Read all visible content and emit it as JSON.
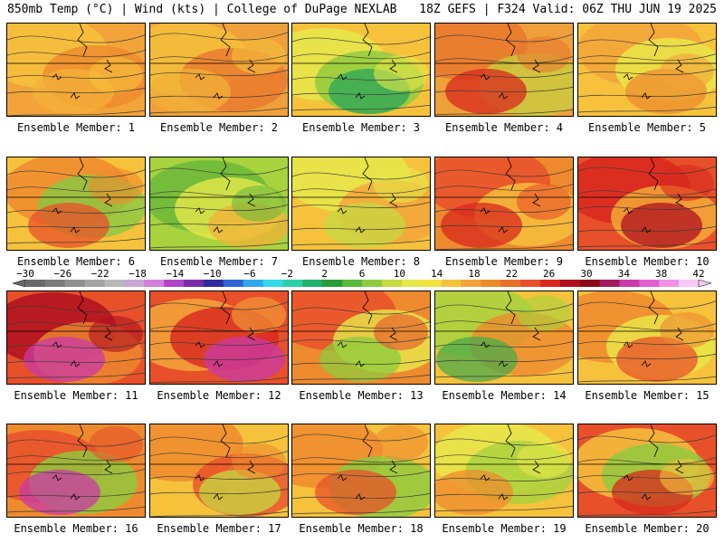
{
  "header": {
    "left": "850mb Temp (°C) | Wind (kts) | College of DuPage NEXLAB",
    "right": "18Z GEFS | F324 Valid: 06Z THU JUN 19 2025"
  },
  "members": [
    {
      "label": "Ensemble Member: 1",
      "palette": [
        "#f2a43a",
        "#f6c23c",
        "#ee8a2e",
        "#f4b038"
      ]
    },
    {
      "label": "Ensemble Member: 2",
      "palette": [
        "#f0a03a",
        "#f5c03c",
        "#e8782e",
        "#f2b238"
      ]
    },
    {
      "label": "Ensemble Member: 3",
      "palette": [
        "#f6c23c",
        "#e6e84a",
        "#8ccb3e",
        "#2aa55a"
      ]
    },
    {
      "label": "Ensemble Member: 4",
      "palette": [
        "#f0a03a",
        "#e8782e",
        "#c9cc3e",
        "#d8281e"
      ]
    },
    {
      "label": "Ensemble Member: 5",
      "palette": [
        "#f6c23c",
        "#f2a43a",
        "#e8ea4a",
        "#ee8a2e"
      ]
    },
    {
      "label": "Ensemble Member: 6",
      "palette": [
        "#f6c23c",
        "#ee8a2e",
        "#88c844",
        "#e8502a"
      ]
    },
    {
      "label": "Ensemble Member: 7",
      "palette": [
        "#a8d23e",
        "#6cb83a",
        "#e6e84a",
        "#f2b238"
      ]
    },
    {
      "label": "Ensemble Member: 8",
      "palette": [
        "#f6c23c",
        "#e6e84a",
        "#f2a43a",
        "#c6d842"
      ]
    },
    {
      "label": "Ensemble Member: 9",
      "palette": [
        "#ee8a2e",
        "#e8502a",
        "#f6c23c",
        "#d8281e"
      ]
    },
    {
      "label": "Ensemble Member: 10",
      "palette": [
        "#e8502a",
        "#d8281e",
        "#f4b038",
        "#b01020"
      ]
    },
    {
      "label": "Ensemble Member: 11",
      "palette": [
        "#e8502a",
        "#b01020",
        "#ee8a2e",
        "#c93aa8"
      ]
    },
    {
      "label": "Ensemble Member: 12",
      "palette": [
        "#e8502a",
        "#f2a43a",
        "#d8281e",
        "#c93aa8"
      ]
    },
    {
      "label": "Ensemble Member: 13",
      "palette": [
        "#ee8a2e",
        "#e8502a",
        "#e6e84a",
        "#8ccb3e"
      ]
    },
    {
      "label": "Ensemble Member: 14",
      "palette": [
        "#f6c23c",
        "#a8d23e",
        "#ee8a2e",
        "#4caa4a"
      ]
    },
    {
      "label": "Ensemble Member: 15",
      "palette": [
        "#f6c23c",
        "#ee8a2e",
        "#e8ea4a",
        "#e8502a"
      ]
    },
    {
      "label": "Ensemble Member: 16",
      "palette": [
        "#ee8a2e",
        "#e8502a",
        "#8ccb3e",
        "#c93aa8"
      ]
    },
    {
      "label": "Ensemble Member: 17",
      "palette": [
        "#f6c23c",
        "#ee8a2e",
        "#e8502a",
        "#c6d842"
      ]
    },
    {
      "label": "Ensemble Member: 18",
      "palette": [
        "#f6c23c",
        "#ee8a2e",
        "#8ccb3e",
        "#e8502a"
      ]
    },
    {
      "label": "Ensemble Member: 19",
      "palette": [
        "#f6c23c",
        "#e6e84a",
        "#a8d23e",
        "#ee8a2e"
      ]
    },
    {
      "label": "Ensemble Member: 20",
      "palette": [
        "#e8502a",
        "#f6c23c",
        "#8ccb3e",
        "#d8281e"
      ]
    }
  ],
  "colorbar": {
    "ticks": [
      "−30",
      "−26",
      "−22",
      "−18",
      "−14",
      "−10",
      "−6",
      "−2",
      "2",
      "6",
      "10",
      "14",
      "18",
      "22",
      "26",
      "30",
      "34",
      "38",
      "42"
    ],
    "colors": [
      "#6a6a6a",
      "#7c7c7c",
      "#8f8f8f",
      "#a3a3a3",
      "#b8b8b8",
      "#c9a6d6",
      "#d27fdd",
      "#b044c8",
      "#7a2aa8",
      "#2c2c9c",
      "#2f66d8",
      "#2ea9e8",
      "#34d8e8",
      "#2ad0a8",
      "#22b06a",
      "#2a9c3a",
      "#5ab83a",
      "#8ccb3e",
      "#c6d842",
      "#e6e84a",
      "#f6e23e",
      "#f6c23c",
      "#f2a43a",
      "#ee8a2e",
      "#e8702a",
      "#e8502a",
      "#d8281e",
      "#b01020",
      "#8a0a18",
      "#a01a60",
      "#c93aa8",
      "#e060d0",
      "#f090e8",
      "#f8c8f4"
    ]
  }
}
